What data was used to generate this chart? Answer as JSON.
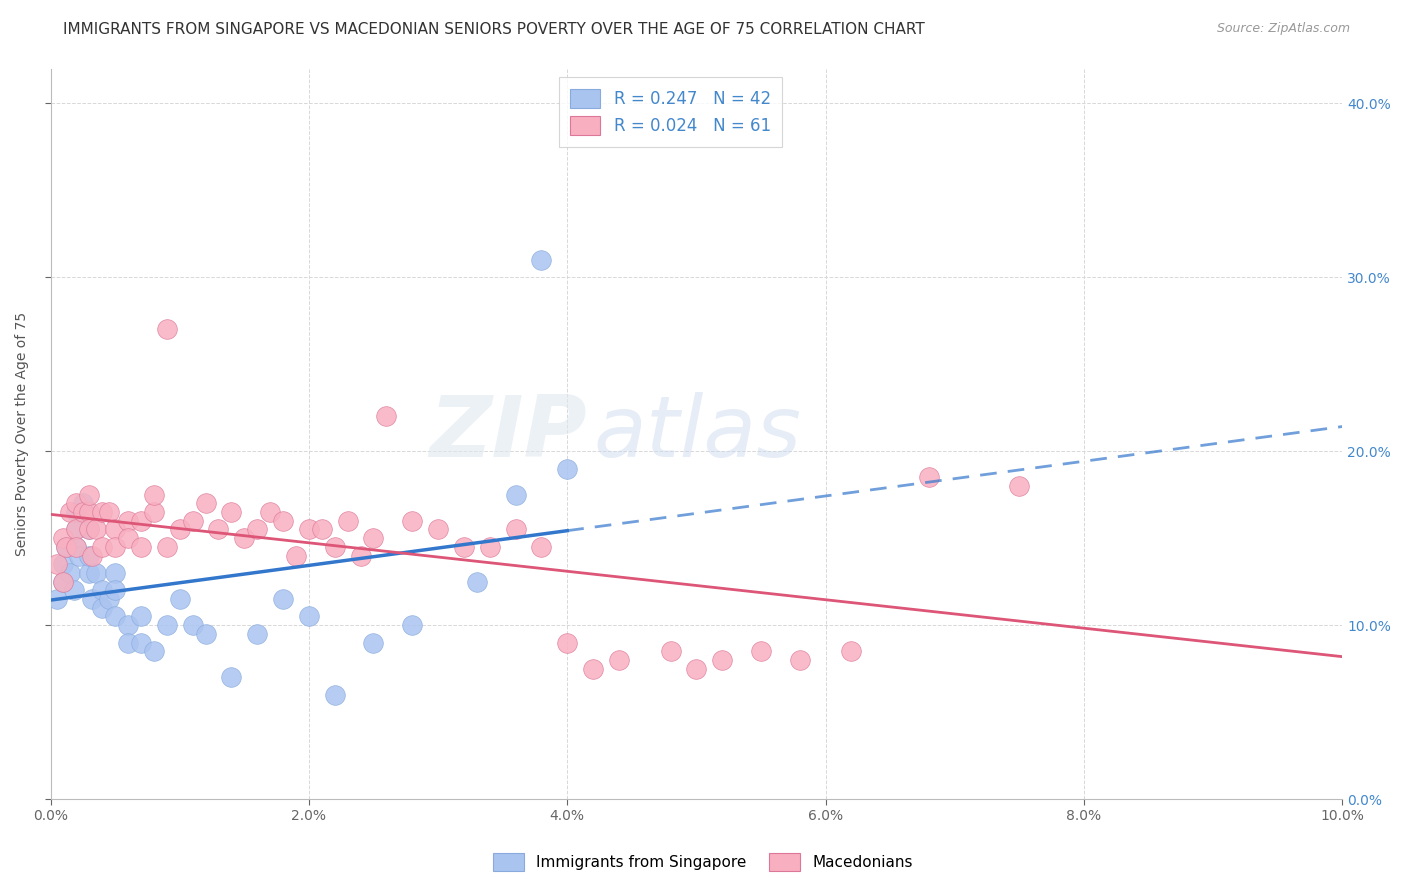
{
  "title": "IMMIGRANTS FROM SINGAPORE VS MACEDONIAN SENIORS POVERTY OVER THE AGE OF 75 CORRELATION CHART",
  "source": "Source: ZipAtlas.com",
  "ylabel": "Seniors Poverty Over the Age of 75",
  "xmin": 0.0,
  "xmax": 0.1,
  "ymin": 0.0,
  "ymax": 0.42,
  "xticks": [
    0.0,
    0.02,
    0.04,
    0.06,
    0.08,
    0.1
  ],
  "yticks": [
    0.0,
    0.1,
    0.2,
    0.3,
    0.4
  ],
  "grid_color": "#d8d8d8",
  "background_color": "#ffffff",
  "series": [
    {
      "label": "Immigrants from Singapore",
      "R": 0.247,
      "N": 42,
      "color": "#aac4f0",
      "edge_color": "#88aadd",
      "trend_color": "#3377cc",
      "x": [
        0.0005,
        0.001,
        0.001,
        0.0012,
        0.0015,
        0.0018,
        0.002,
        0.002,
        0.002,
        0.0022,
        0.0025,
        0.003,
        0.003,
        0.003,
        0.0032,
        0.0035,
        0.004,
        0.004,
        0.0045,
        0.005,
        0.005,
        0.005,
        0.006,
        0.006,
        0.007,
        0.007,
        0.008,
        0.009,
        0.01,
        0.011,
        0.012,
        0.014,
        0.016,
        0.018,
        0.02,
        0.022,
        0.025,
        0.028,
        0.033,
        0.036,
        0.038,
        0.04
      ],
      "y": [
        0.115,
        0.125,
        0.135,
        0.145,
        0.13,
        0.12,
        0.145,
        0.155,
        0.165,
        0.14,
        0.17,
        0.155,
        0.13,
        0.14,
        0.115,
        0.13,
        0.12,
        0.11,
        0.115,
        0.13,
        0.12,
        0.105,
        0.1,
        0.09,
        0.105,
        0.09,
        0.085,
        0.1,
        0.115,
        0.1,
        0.095,
        0.07,
        0.095,
        0.115,
        0.105,
        0.06,
        0.09,
        0.1,
        0.125,
        0.175,
        0.31,
        0.19
      ]
    },
    {
      "label": "Macedonians",
      "R": 0.024,
      "N": 61,
      "color": "#f8b0c0",
      "edge_color": "#dd7799",
      "trend_color": "#dd5577",
      "x": [
        0.0005,
        0.001,
        0.001,
        0.0012,
        0.0015,
        0.002,
        0.002,
        0.002,
        0.0025,
        0.003,
        0.003,
        0.003,
        0.0032,
        0.0035,
        0.004,
        0.004,
        0.0045,
        0.005,
        0.005,
        0.006,
        0.006,
        0.007,
        0.007,
        0.008,
        0.008,
        0.009,
        0.009,
        0.01,
        0.011,
        0.012,
        0.013,
        0.014,
        0.015,
        0.016,
        0.017,
        0.018,
        0.019,
        0.02,
        0.021,
        0.022,
        0.023,
        0.024,
        0.025,
        0.026,
        0.028,
        0.03,
        0.032,
        0.034,
        0.036,
        0.038,
        0.04,
        0.042,
        0.044,
        0.048,
        0.05,
        0.052,
        0.055,
        0.058,
        0.062,
        0.068,
        0.075
      ],
      "y": [
        0.135,
        0.15,
        0.125,
        0.145,
        0.165,
        0.155,
        0.145,
        0.17,
        0.165,
        0.165,
        0.155,
        0.175,
        0.14,
        0.155,
        0.165,
        0.145,
        0.165,
        0.155,
        0.145,
        0.16,
        0.15,
        0.16,
        0.145,
        0.165,
        0.175,
        0.145,
        0.27,
        0.155,
        0.16,
        0.17,
        0.155,
        0.165,
        0.15,
        0.155,
        0.165,
        0.16,
        0.14,
        0.155,
        0.155,
        0.145,
        0.16,
        0.14,
        0.15,
        0.22,
        0.16,
        0.155,
        0.145,
        0.145,
        0.155,
        0.145,
        0.09,
        0.075,
        0.08,
        0.085,
        0.075,
        0.08,
        0.085,
        0.08,
        0.085,
        0.185,
        0.18
      ]
    }
  ],
  "title_fontsize": 11,
  "axis_label_fontsize": 10,
  "tick_fontsize": 10,
  "source_fontsize": 9
}
